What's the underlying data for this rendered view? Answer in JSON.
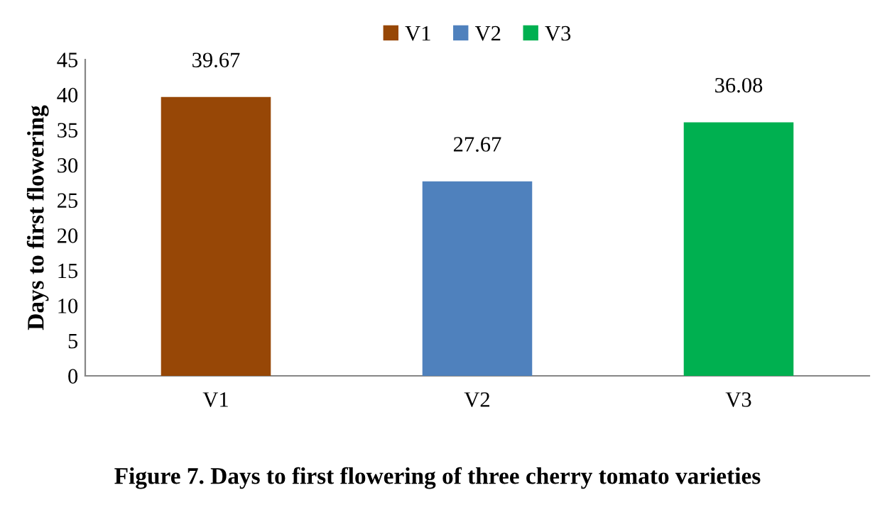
{
  "chart_data": {
    "type": "bar",
    "title": "Figure 7. Days to first flowering of three cherry tomato varieties",
    "ylabel": "Days to first flowering",
    "categories": [
      "V1",
      "V2",
      "V3"
    ],
    "series": [
      {
        "name": "V1",
        "color": "#974706",
        "values": [
          39.67,
          null,
          null
        ]
      },
      {
        "name": "V2",
        "color": "#4f81bd",
        "values": [
          null,
          27.67,
          null
        ]
      },
      {
        "name": "V3",
        "color": "#00b050",
        "values": [
          null,
          null,
          36.08
        ]
      }
    ],
    "ylim": [
      0,
      45
    ],
    "yticks": [
      0,
      5,
      10,
      15,
      20,
      25,
      30,
      35,
      40,
      45
    ],
    "grid": false,
    "legend": "top",
    "data_labels": true
  }
}
